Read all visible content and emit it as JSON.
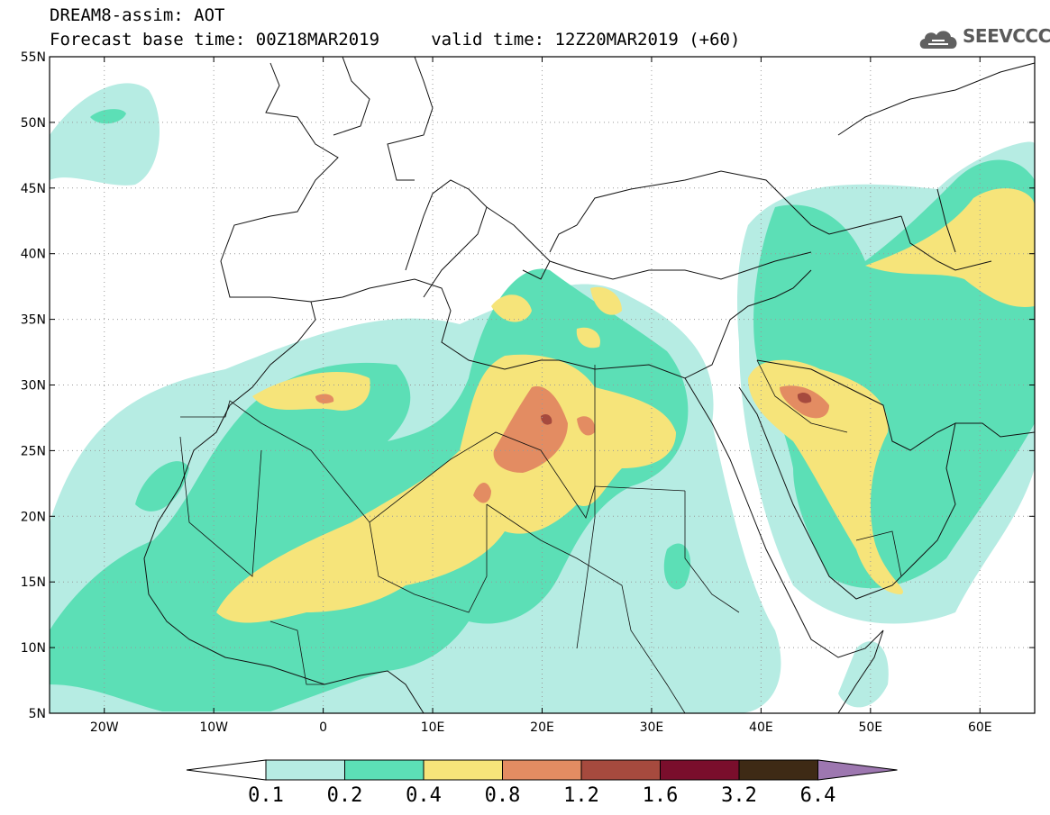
{
  "header": {
    "line1": "DREAM8-assim: AOT",
    "line2": "Forecast base time: 00Z18MAR2019     valid time: 12Z20MAR2019 (+60)"
  },
  "logo": {
    "text": "SEEVCCC",
    "icon": "cloud-logo-icon",
    "color": "#606060"
  },
  "map": {
    "lon_range": [
      -25,
      65
    ],
    "lat_range": [
      5,
      55
    ],
    "lon_ticks": [
      {
        "value": -20,
        "label": "20W"
      },
      {
        "value": -10,
        "label": "10W"
      },
      {
        "value": 0,
        "label": "0"
      },
      {
        "value": 10,
        "label": "10E"
      },
      {
        "value": 20,
        "label": "20E"
      },
      {
        "value": 30,
        "label": "30E"
      },
      {
        "value": 40,
        "label": "40E"
      },
      {
        "value": 50,
        "label": "50E"
      },
      {
        "value": 60,
        "label": "60E"
      }
    ],
    "lat_ticks": [
      {
        "value": 55,
        "label": "55N"
      },
      {
        "value": 50,
        "label": "50N"
      },
      {
        "value": 45,
        "label": "45N"
      },
      {
        "value": 40,
        "label": "40N"
      },
      {
        "value": 35,
        "label": "35N"
      },
      {
        "value": 30,
        "label": "30N"
      },
      {
        "value": 25,
        "label": "25N"
      },
      {
        "value": 20,
        "label": "20N"
      },
      {
        "value": 15,
        "label": "15N"
      },
      {
        "value": 10,
        "label": "10N"
      },
      {
        "value": 5,
        "label": "5N"
      }
    ],
    "grid": "dotted"
  },
  "colorbar": {
    "labels": [
      "0.1",
      "0.2",
      "0.4",
      "0.8",
      "1.2",
      "1.6",
      "3.2",
      "6.4"
    ],
    "colors": [
      "#ffffff",
      "#b6ece3",
      "#5cdfb6",
      "#f6e47a",
      "#e38c62",
      "#a64a3e",
      "#7a0e2c",
      "#3e2a15",
      "#9d77b0"
    ]
  }
}
